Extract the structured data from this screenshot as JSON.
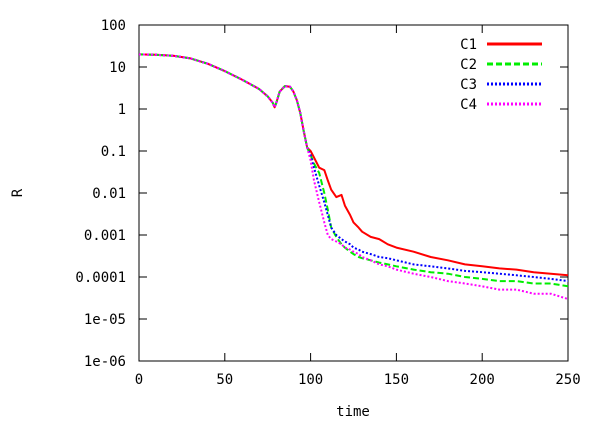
{
  "chart_data": {
    "type": "line",
    "title": "",
    "xlabel": "time",
    "ylabel": "R",
    "xlim": [
      0,
      250
    ],
    "ylim": [
      1e-06,
      100
    ],
    "yscale": "log",
    "grid": false,
    "legend_position": "top-right",
    "x_ticks": [
      0,
      50,
      100,
      150,
      200,
      250
    ],
    "x_tick_labels": [
      "0",
      "50",
      "100",
      "150",
      "200",
      "250"
    ],
    "y_ticks": [
      100,
      10,
      1,
      0.1,
      0.01,
      0.001,
      0.0001,
      1e-05,
      1e-06
    ],
    "y_tick_labels": [
      "100",
      "10",
      "1",
      "0.1",
      "0.01",
      "0.001",
      "0.0001",
      "1e-05",
      "1e-06"
    ],
    "series": [
      {
        "name": "C1",
        "color": "#ff0000",
        "dash": "solid",
        "x": [
          0,
          10,
          20,
          30,
          40,
          50,
          60,
          70,
          75,
          78,
          79,
          80,
          82,
          85,
          88,
          90,
          92,
          94,
          96,
          98,
          100,
          102,
          105,
          108,
          110,
          112,
          115,
          118,
          120,
          123,
          125,
          128,
          130,
          135,
          140,
          145,
          150,
          160,
          170,
          180,
          190,
          200,
          210,
          220,
          230,
          240,
          250
        ],
        "y": [
          20,
          19.5,
          18.5,
          16,
          12,
          8,
          5,
          3,
          2,
          1.4,
          1.1,
          1.4,
          2.6,
          3.5,
          3.4,
          2.6,
          1.6,
          0.8,
          0.3,
          0.12,
          0.1,
          0.07,
          0.04,
          0.035,
          0.02,
          0.012,
          0.008,
          0.009,
          0.005,
          0.003,
          0.002,
          0.0015,
          0.0012,
          0.0009,
          0.0008,
          0.0006,
          0.0005,
          0.0004,
          0.0003,
          0.00025,
          0.0002,
          0.00018,
          0.00016,
          0.00015,
          0.00013,
          0.00012,
          0.00011
        ]
      },
      {
        "name": "C2",
        "color": "#00ee00",
        "dash": "dashed",
        "x": [
          0,
          10,
          20,
          30,
          40,
          50,
          60,
          70,
          75,
          78,
          79,
          80,
          82,
          85,
          88,
          90,
          92,
          94,
          96,
          98,
          100,
          102,
          105,
          108,
          110,
          112,
          115,
          118,
          120,
          123,
          125,
          128,
          130,
          135,
          140,
          145,
          150,
          160,
          170,
          180,
          190,
          200,
          210,
          220,
          230,
          240,
          250
        ],
        "y": [
          20,
          19.5,
          18.5,
          16,
          12,
          8,
          5,
          3,
          2,
          1.4,
          1.1,
          1.4,
          2.6,
          3.5,
          3.4,
          2.6,
          1.6,
          0.8,
          0.3,
          0.12,
          0.08,
          0.05,
          0.03,
          0.01,
          0.004,
          0.0015,
          0.0009,
          0.0006,
          0.0005,
          0.0004,
          0.00035,
          0.0003,
          0.00028,
          0.00025,
          0.00022,
          0.0002,
          0.00018,
          0.00015,
          0.00013,
          0.00012,
          0.0001,
          9e-05,
          8e-05,
          8e-05,
          7e-05,
          7e-05,
          6e-05
        ]
      },
      {
        "name": "C3",
        "color": "#0000ff",
        "dash": "dotted",
        "x": [
          0,
          10,
          20,
          30,
          40,
          50,
          60,
          70,
          75,
          78,
          79,
          80,
          82,
          85,
          88,
          90,
          92,
          94,
          96,
          98,
          100,
          102,
          105,
          108,
          110,
          112,
          115,
          118,
          120,
          123,
          125,
          128,
          130,
          135,
          140,
          145,
          150,
          160,
          170,
          180,
          190,
          200,
          210,
          220,
          230,
          240,
          250
        ],
        "y": [
          20,
          19.5,
          18.5,
          16,
          12,
          8,
          5,
          3,
          2,
          1.4,
          1.1,
          1.4,
          2.6,
          3.5,
          3.4,
          2.6,
          1.6,
          0.8,
          0.3,
          0.12,
          0.08,
          0.04,
          0.015,
          0.006,
          0.003,
          0.0015,
          0.001,
          0.0008,
          0.0007,
          0.0006,
          0.0005,
          0.00045,
          0.0004,
          0.00035,
          0.0003,
          0.00028,
          0.00025,
          0.0002,
          0.00018,
          0.00016,
          0.00014,
          0.00013,
          0.00012,
          0.00011,
          0.0001,
          9e-05,
          8e-05
        ]
      },
      {
        "name": "C4",
        "color": "#ff00ff",
        "dash": "dotted",
        "x": [
          0,
          10,
          20,
          30,
          40,
          50,
          60,
          70,
          75,
          78,
          79,
          80,
          82,
          85,
          88,
          90,
          92,
          94,
          96,
          98,
          100,
          102,
          105,
          108,
          110,
          112,
          115,
          118,
          120,
          123,
          125,
          128,
          130,
          135,
          140,
          145,
          150,
          160,
          170,
          180,
          190,
          200,
          210,
          220,
          230,
          240,
          250
        ],
        "y": [
          20,
          19.5,
          18.5,
          16,
          12,
          8,
          5,
          3,
          2,
          1.4,
          1.1,
          1.4,
          2.6,
          3.5,
          3.4,
          2.6,
          1.6,
          0.8,
          0.3,
          0.12,
          0.06,
          0.02,
          0.006,
          0.002,
          0.001,
          0.0008,
          0.0007,
          0.0006,
          0.0005,
          0.00045,
          0.0004,
          0.00035,
          0.0003,
          0.00025,
          0.0002,
          0.00018,
          0.00015,
          0.00012,
          0.0001,
          8e-05,
          7e-05,
          6e-05,
          5e-05,
          5e-05,
          4e-05,
          4e-05,
          3e-05
        ]
      }
    ]
  }
}
